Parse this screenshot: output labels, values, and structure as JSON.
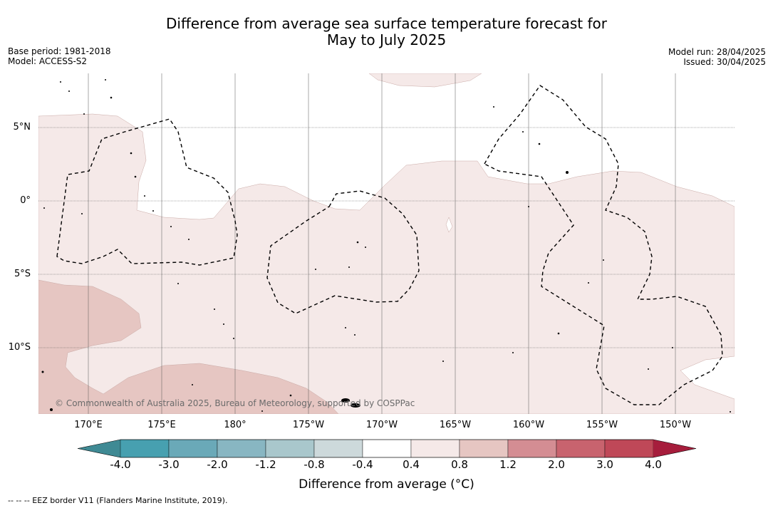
{
  "title_line1": "Difference from average sea surface temperature forecast for",
  "title_line2": "May to July 2025",
  "base_period": "Base period: 1981-2018",
  "model": "Model: ACCESS-S2",
  "model_run": "Model run: 28/04/2025",
  "issued": "Issued: 30/04/2025",
  "lat_labels": [
    "5°N",
    "0°",
    "5°S",
    "10°S"
  ],
  "lon_labels": [
    "170°E",
    "175°E",
    "180°",
    "175°W",
    "170°W",
    "165°W",
    "160°W",
    "155°W",
    "150°W"
  ],
  "copyright": "© Commonwealth of Australia 2025, Bureau of Meteorology, supported by COSPPac",
  "colorbar": {
    "ticks": [
      "-4.0",
      "-3.0",
      "-2.0",
      "-1.2",
      "-0.8",
      "-0.4",
      "0.4",
      "0.8",
      "1.2",
      "2.0",
      "3.0",
      "4.0"
    ],
    "colors": [
      "#3f8a94",
      "#47a0b0",
      "#6aa9b8",
      "#88b6c2",
      "#a9c7cc",
      "#cdd9db",
      "#ffffff",
      "#f5e9e8",
      "#e6c6c2",
      "#d48d93",
      "#c8636e",
      "#bf4858",
      "#a61d3c"
    ],
    "label": "Difference from average (°C)"
  },
  "legend_note": "--  --  -- EEZ border V11 (Flanders Marine Institute, 2019).",
  "map_colors": {
    "light_anomaly": "#f5e9e8",
    "medium_anomaly": "#e6c6c2",
    "grid": "#555555"
  }
}
